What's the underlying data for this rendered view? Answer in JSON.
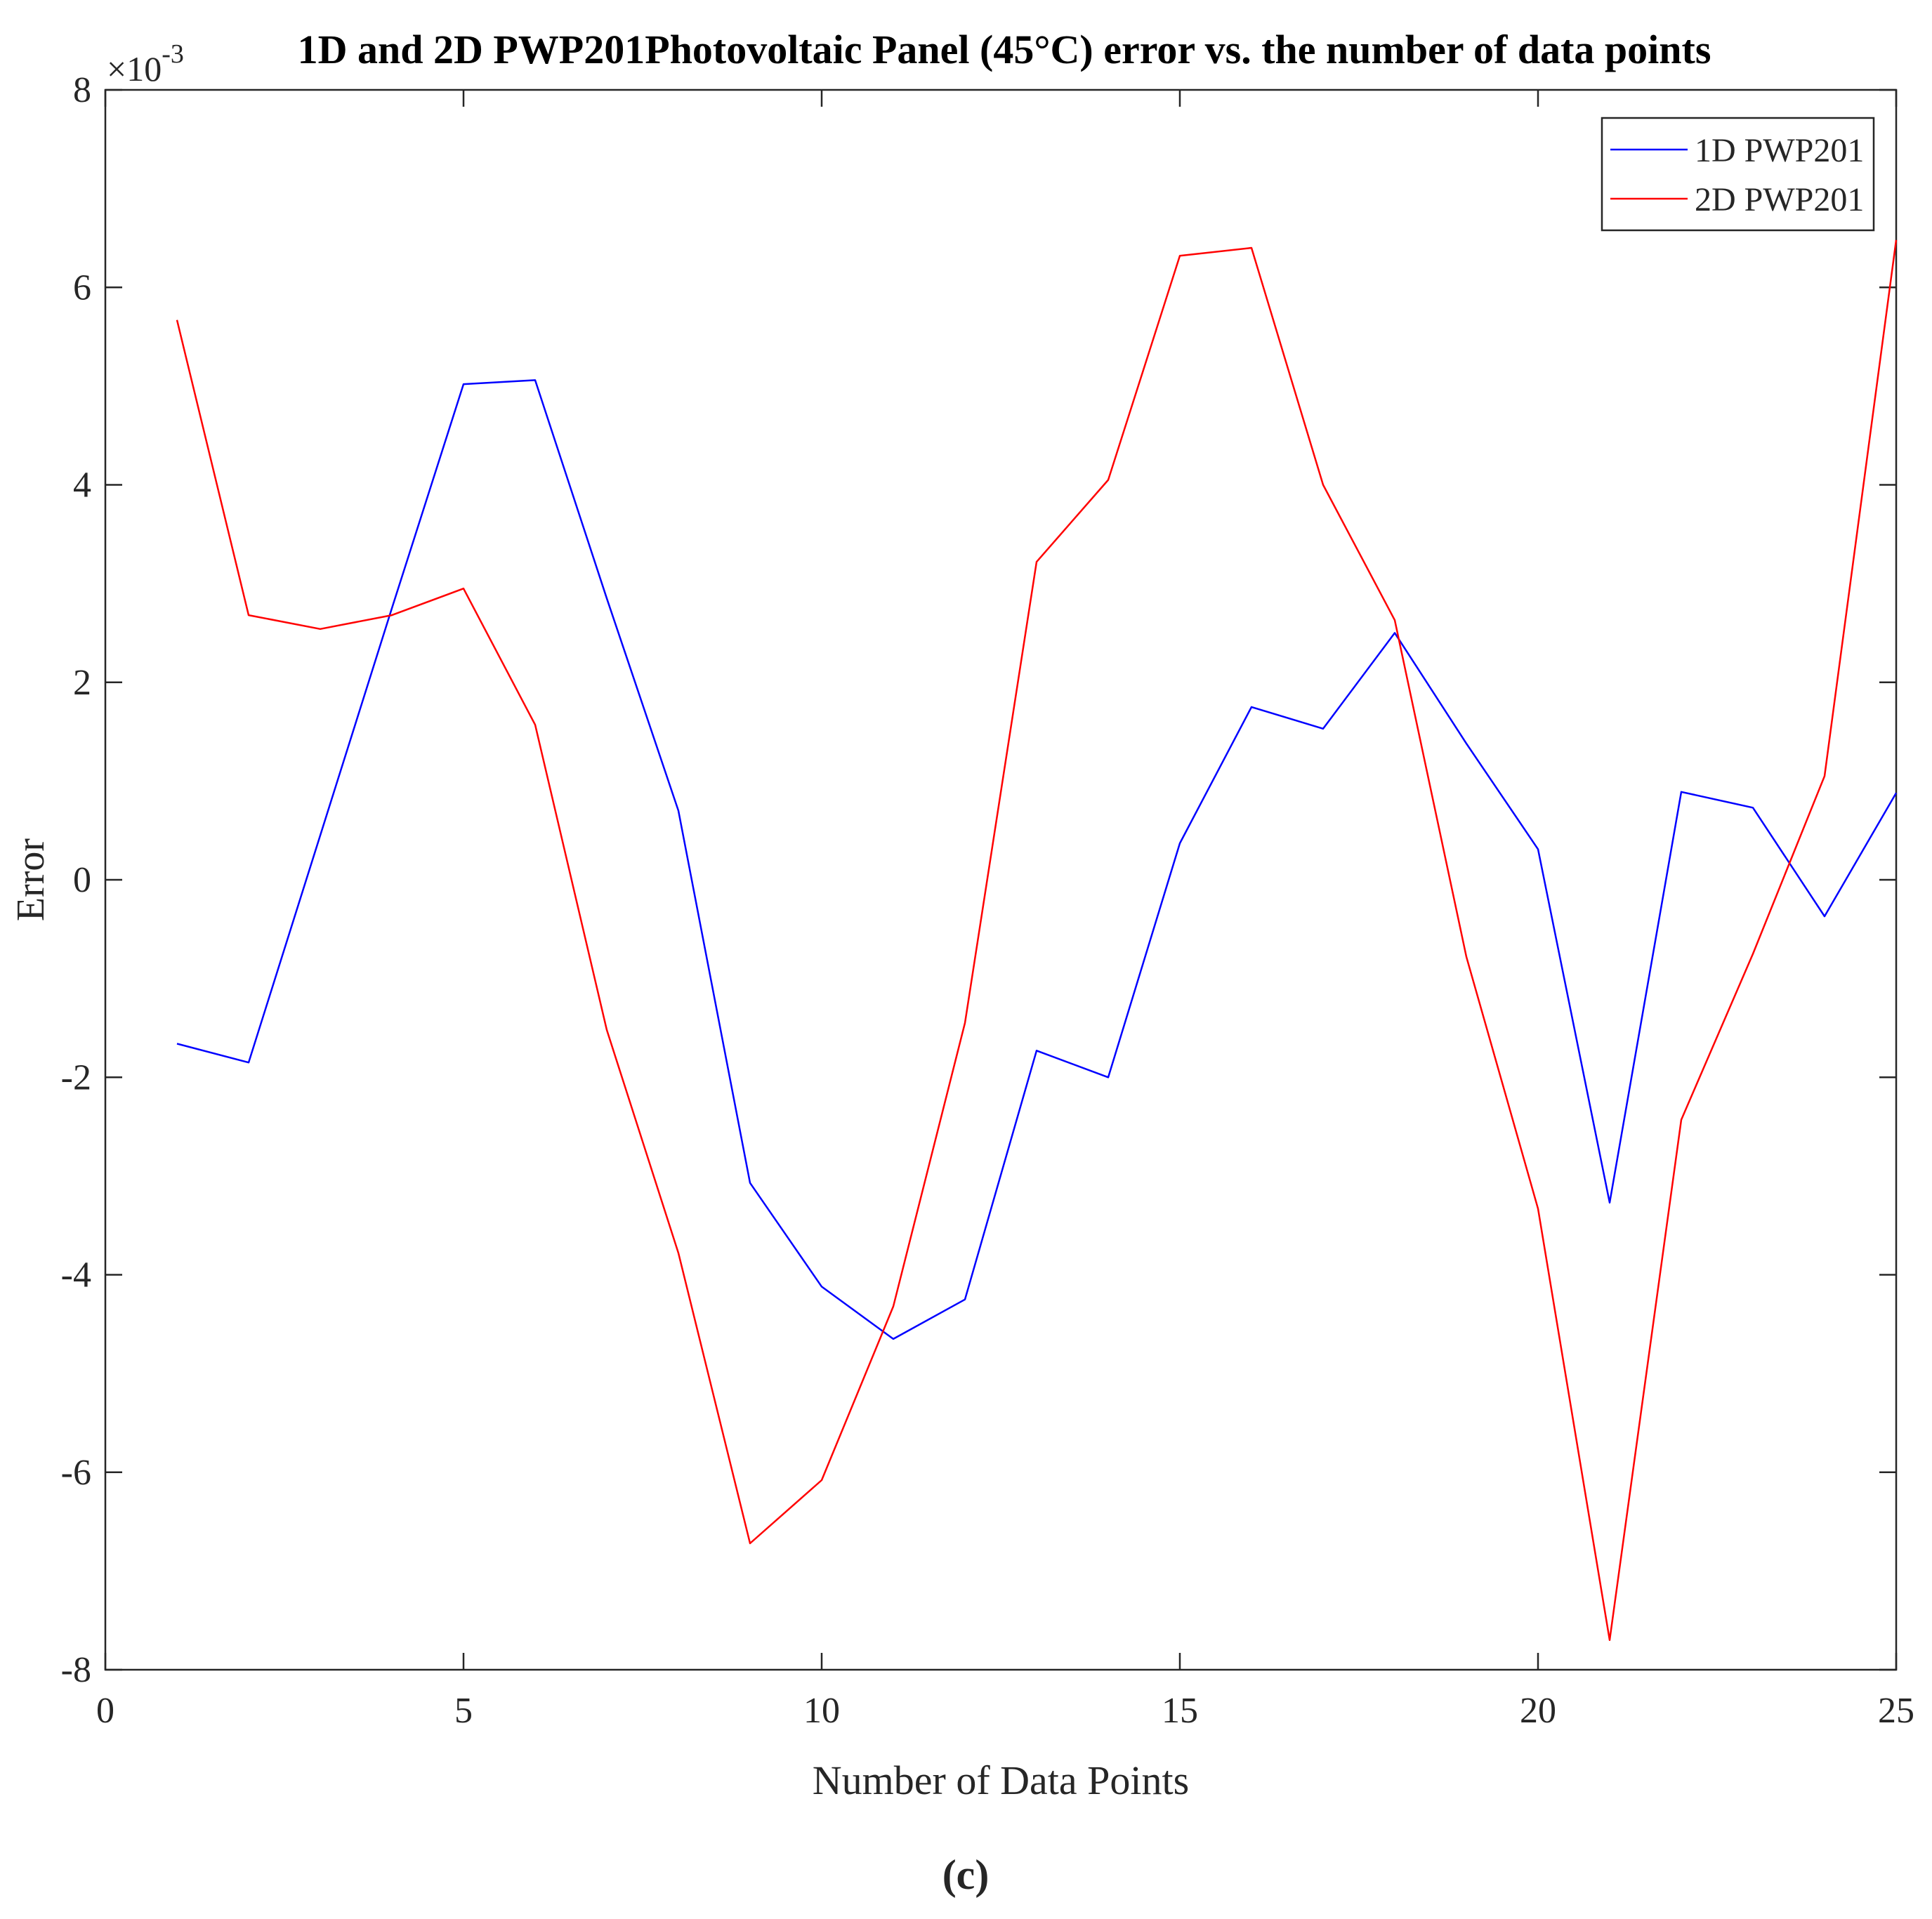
{
  "figure": {
    "caption_prefix": "(",
    "caption_letter": "c",
    "caption_suffix": ")"
  },
  "chart_data": {
    "type": "line",
    "title": "1D and 2D PWP201Photovoltaic Panel (45°C) error vs. the number of data points",
    "xlabel": "Number of Data Points",
    "ylabel": "Error",
    "y_exponent_base": "×10",
    "y_exponent_power": "-3",
    "xlim": [
      0,
      25
    ],
    "ylim": [
      -0.008,
      0.008
    ],
    "x_ticks": [
      0,
      5,
      10,
      15,
      20,
      25
    ],
    "y_ticks": [
      -0.008,
      -0.006,
      -0.004,
      -0.002,
      0,
      0.002,
      0.004,
      0.006,
      0.008
    ],
    "x_tick_labels": [
      "0",
      "5",
      "10",
      "15",
      "20",
      "25"
    ],
    "y_tick_labels": [
      "-8",
      "-6",
      "-4",
      "-2",
      "0",
      "2",
      "4",
      "6",
      "8"
    ],
    "grid": false,
    "legend_position": "top-right",
    "x": [
      1,
      2,
      3,
      4,
      5,
      6,
      7,
      8,
      9,
      10,
      11,
      12,
      13,
      14,
      15,
      16,
      17,
      18,
      19,
      20,
      21,
      22,
      23,
      24,
      25
    ],
    "series": [
      {
        "name": "1D PWP201",
        "color": "#0000ff",
        "values": [
          -0.00166,
          -0.00185,
          0.00045,
          0.00275,
          0.00502,
          0.00506,
          0.00285,
          0.0007,
          -0.00307,
          -0.00412,
          -0.00465,
          -0.00425,
          -0.00173,
          -0.002,
          0.00037,
          0.00175,
          0.00153,
          0.0025,
          0.00138,
          0.00031,
          -0.00327,
          0.00089,
          0.00073,
          -0.00037,
          0.00088
        ]
      },
      {
        "name": "2D PWP201",
        "color": "#ff0000",
        "values": [
          0.00567,
          0.00268,
          0.00254,
          0.00268,
          0.00295,
          0.00157,
          -0.00152,
          -0.00378,
          -0.00672,
          -0.00608,
          -0.00432,
          -0.00145,
          0.00322,
          0.00405,
          0.00632,
          0.0064,
          0.004,
          0.00263,
          -0.00078,
          -0.00333,
          -0.0077,
          -0.00243,
          -0.00075,
          0.00105,
          0.00648
        ]
      }
    ]
  }
}
